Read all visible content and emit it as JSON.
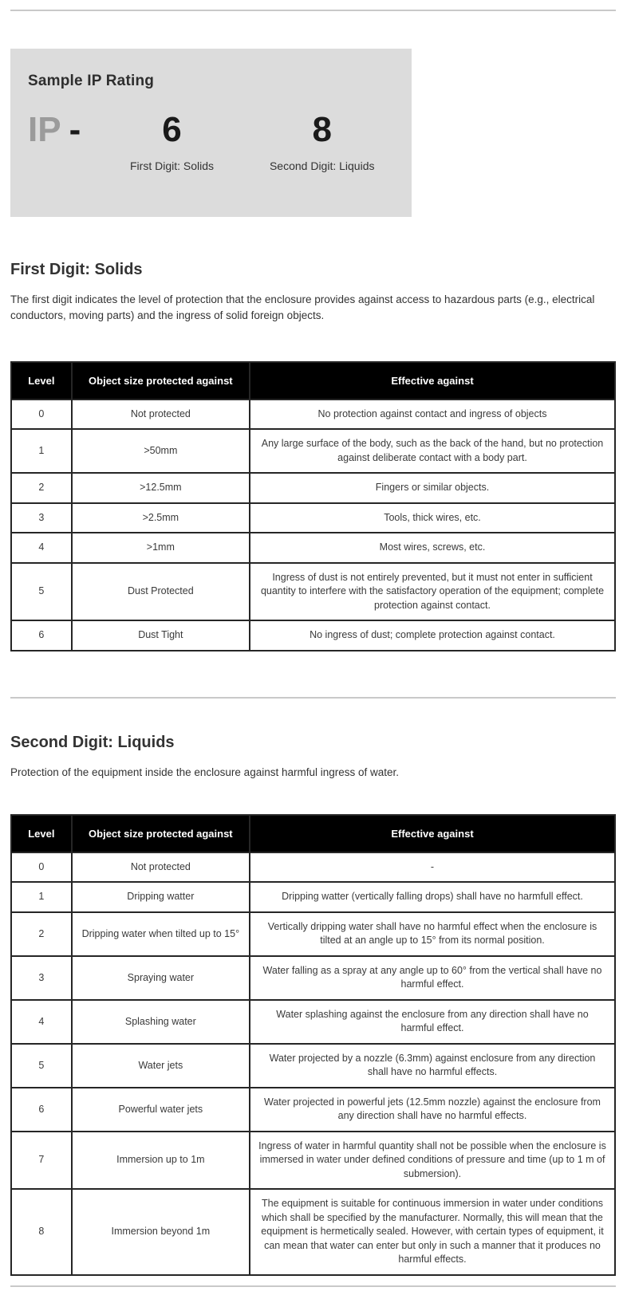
{
  "colors": {
    "sample_box_bg": "#dcdcdc",
    "ip_prefix_gray": "#9b9b9b",
    "table_header_bg": "#000000",
    "table_header_text": "#ffffff",
    "body_text": "#333333",
    "rule_gray": "#c9c9c9"
  },
  "sample_box": {
    "title": "Sample IP Rating",
    "prefix": "IP",
    "dash": "-",
    "first_digit": "6",
    "second_digit": "8",
    "first_label": "First Digit: Solids",
    "second_label": "Second Digit: Liquids"
  },
  "solids_section": {
    "heading": "First Digit: Solids",
    "description": "The first digit indicates the level of protection that the enclosure provides against access to hazardous parts (e.g., electrical conductors, moving parts) and the ingress of solid foreign objects.",
    "table": {
      "headers": [
        "Level",
        "Object size protected against",
        "Effective against"
      ],
      "rows": [
        [
          "0",
          "Not protected",
          "No protection against contact and ingress of objects"
        ],
        [
          "1",
          ">50mm",
          "Any large surface of the body, such as the back of the hand, but no protection against deliberate contact with a body part."
        ],
        [
          "2",
          ">12.5mm",
          "Fingers or similar objects."
        ],
        [
          "3",
          ">2.5mm",
          "Tools, thick wires, etc."
        ],
        [
          "4",
          ">1mm",
          "Most wires, screws, etc."
        ],
        [
          "5",
          "Dust Protected",
          "Ingress of dust is not entirely prevented, but it must not enter in sufficient quantity to interfere with the satisfactory operation of the equipment; complete protection against contact."
        ],
        [
          "6",
          "Dust Tight",
          "No ingress of dust; complete protection against contact."
        ]
      ]
    }
  },
  "liquids_section": {
    "heading": "Second Digit: Liquids",
    "description": "Protection of the equipment inside the enclosure against harmful ingress of water.",
    "table": {
      "headers": [
        "Level",
        "Object size protected against",
        "Effective against"
      ],
      "rows": [
        [
          "0",
          "Not protected",
          "-"
        ],
        [
          "1",
          "Dripping watter",
          "Dripping watter (vertically falling drops) shall have no harmfull effect."
        ],
        [
          "2",
          "Dripping water when tilted up to 15°",
          "Vertically dripping water shall have no harmful effect when the enclosure is tilted at an angle up to 15° from its normal position."
        ],
        [
          "3",
          "Spraying water",
          "Water falling as a spray at any angle up to 60° from the vertical shall have no harmful effect."
        ],
        [
          "4",
          "Splashing water",
          "Water splashing against the enclosure from any direction shall have no harmful effect."
        ],
        [
          "5",
          "Water jets",
          "Water projected by a nozzle (6.3mm) against enclosure from any direction shall have no harmful effects."
        ],
        [
          "6",
          "Powerful water jets",
          "Water projected in powerful jets (12.5mm nozzle) against the enclosure from any direction shall have no harmful effects."
        ],
        [
          "7",
          "Immersion up to 1m",
          "Ingress of water in harmful quantity shall not be possible when the enclosure is immersed in water under defined conditions of pressure and time (up to 1 m of submersion)."
        ],
        [
          "8",
          "Immersion beyond 1m",
          "The equipment is suitable for continuous immersion in water under conditions which shall be specified by the manufacturer. Normally, this will mean that the equipment is hermetically sealed. However, with certain types of equipment, it can mean that water can enter but only in such a manner that it produces no harmful effects."
        ]
      ]
    }
  }
}
